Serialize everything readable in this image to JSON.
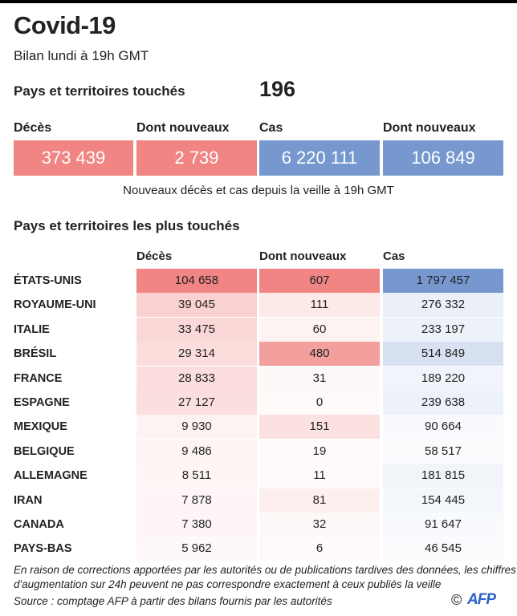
{
  "title": "Covid-19",
  "subtitle": "Bilan lundi à 19h GMT",
  "countries_touched": {
    "label": "Pays et territoires touchés",
    "value": "196"
  },
  "key_figures": [
    {
      "label": "Décès",
      "value": "373 439",
      "color": "#f08583"
    },
    {
      "label": "Dont nouveaux",
      "value": "2 739",
      "color": "#f08583"
    },
    {
      "label": "Cas",
      "value": "6 220 111",
      "color": "#7698cf"
    },
    {
      "label": "Dont nouveaux",
      "value": "106 849",
      "color": "#7698cf"
    }
  ],
  "note": "Nouveaux décès et cas depuis la veille à 19h GMT",
  "section_title": "Pays et territoires les plus touchés",
  "chart_data": {
    "type": "table",
    "columns": [
      "Décès",
      "Dont nouveaux",
      "Cas"
    ],
    "rows": [
      {
        "country": "ÉTATS-UNIS",
        "deaths": "104 658",
        "new": "607",
        "cases": "1 797 457"
      },
      {
        "country": "ROYAUME-UNI",
        "deaths": "39 045",
        "new": "111",
        "cases": "276 332"
      },
      {
        "country": "ITALIE",
        "deaths": "33 475",
        "new": "60",
        "cases": "233 197"
      },
      {
        "country": "BRÉSIL",
        "deaths": "29 314",
        "new": "480",
        "cases": "514 849"
      },
      {
        "country": "FRANCE",
        "deaths": "28 833",
        "new": "31",
        "cases": "189 220"
      },
      {
        "country": "ESPAGNE",
        "deaths": "27 127",
        "new": "0",
        "cases": "239 638"
      },
      {
        "country": "MEXIQUE",
        "deaths": "9 930",
        "new": "151",
        "cases": "90 664"
      },
      {
        "country": "BELGIQUE",
        "deaths": "9 486",
        "new": "19",
        "cases": "58 517"
      },
      {
        "country": "ALLEMAGNE",
        "deaths": "8 511",
        "new": "11",
        "cases": "181 815"
      },
      {
        "country": "IRAN",
        "deaths": "7 878",
        "new": "81",
        "cases": "154 445"
      },
      {
        "country": "CANADA",
        "deaths": "7 380",
        "new": "32",
        "cases": "91 647"
      },
      {
        "country": "PAYS-BAS",
        "deaths": "5 962",
        "new": "6",
        "cases": "46 545"
      }
    ],
    "heat_colors": {
      "deaths": "#f08583",
      "new": "#f08583",
      "cases": "#7698cf"
    }
  },
  "footnote": [
    "En raison de corrections apportées par les autorités ou de publications tardives des données, les chiffres",
    "d'augmentation sur 24h peuvent ne pas correspondre exactement à ceux publiés la veille"
  ],
  "source": "Source : comptage AFP à partir des bilans fournis par les autorités",
  "copyright": "©",
  "logo": "AFP"
}
